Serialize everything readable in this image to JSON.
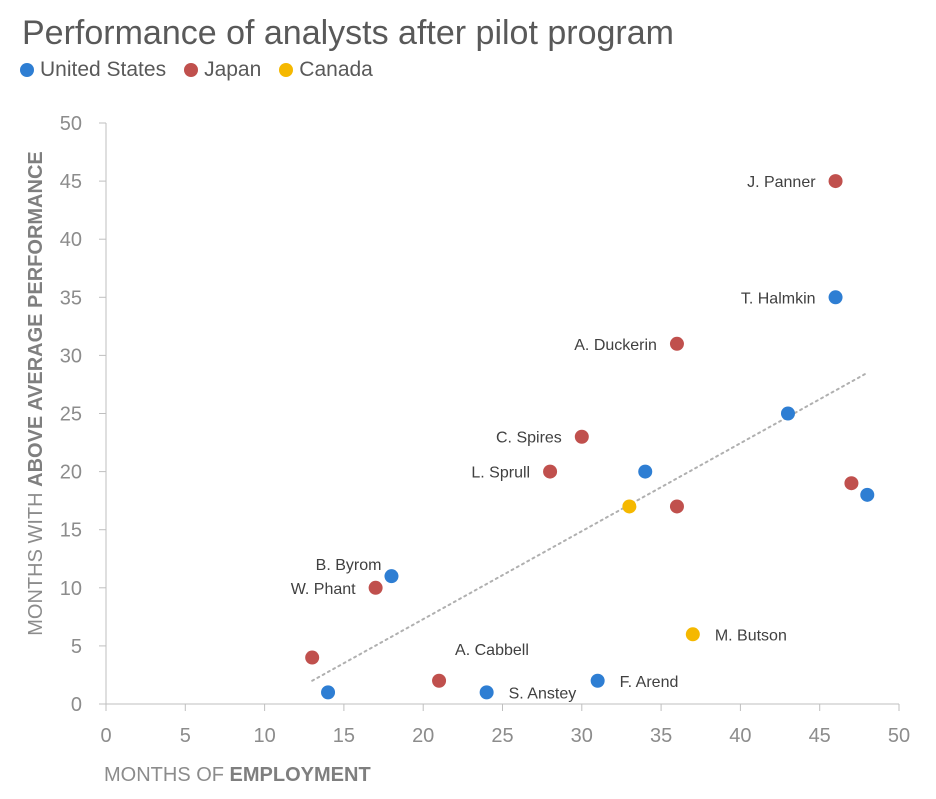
{
  "chart_data": {
    "type": "scatter",
    "title": "Performance of analysts after pilot program",
    "xlabel": {
      "prefix": "MONTHS OF ",
      "emphasis": "EMPLOYMENT"
    },
    "ylabel": {
      "prefix": "MONTHS WITH ",
      "emphasis": "ABOVE AVERAGE PERFORMANCE"
    },
    "xlim": [
      0,
      50
    ],
    "ylim": [
      0,
      50
    ],
    "xticks": [
      0,
      5,
      10,
      15,
      20,
      25,
      30,
      35,
      40,
      45,
      50
    ],
    "yticks": [
      0,
      5,
      10,
      15,
      20,
      25,
      30,
      35,
      40,
      45,
      50
    ],
    "series": [
      {
        "name": "United States",
        "color": "#2e7ed3",
        "points": [
          {
            "x": 14,
            "y": 1,
            "label": ""
          },
          {
            "x": 18,
            "y": 11,
            "label": "B. Byrom"
          },
          {
            "x": 24,
            "y": 1,
            "label": "S. Anstey"
          },
          {
            "x": 31,
            "y": 2,
            "label": "F. Arend"
          },
          {
            "x": 34,
            "y": 20,
            "label": ""
          },
          {
            "x": 43,
            "y": 25,
            "label": ""
          },
          {
            "x": 46,
            "y": 35,
            "label": "T. Halmkin"
          },
          {
            "x": 48,
            "y": 18,
            "label": ""
          }
        ]
      },
      {
        "name": "Japan",
        "color": "#c0504d",
        "points": [
          {
            "x": 13,
            "y": 4,
            "label": ""
          },
          {
            "x": 17,
            "y": 10,
            "label": "W. Phant"
          },
          {
            "x": 21,
            "y": 2,
            "label": "A. Cabbell"
          },
          {
            "x": 28,
            "y": 20,
            "label": "L. Sprull"
          },
          {
            "x": 30,
            "y": 23,
            "label": "C. Spires"
          },
          {
            "x": 36,
            "y": 31,
            "label": "A. Duckerin"
          },
          {
            "x": 36,
            "y": 17,
            "label": ""
          },
          {
            "x": 46,
            "y": 45,
            "label": "J. Panner"
          },
          {
            "x": 47,
            "y": 19,
            "label": ""
          }
        ]
      },
      {
        "name": "Canada",
        "color": "#f5b800",
        "points": [
          {
            "x": 33,
            "y": 17,
            "label": ""
          },
          {
            "x": 37,
            "y": 6,
            "label": "M. Butson"
          }
        ]
      }
    ],
    "trendline": {
      "x": [
        13,
        48
      ],
      "y": [
        2,
        28.5
      ],
      "color": "#b0b0b0",
      "style": "dotted"
    },
    "legend_position": "top-left"
  }
}
